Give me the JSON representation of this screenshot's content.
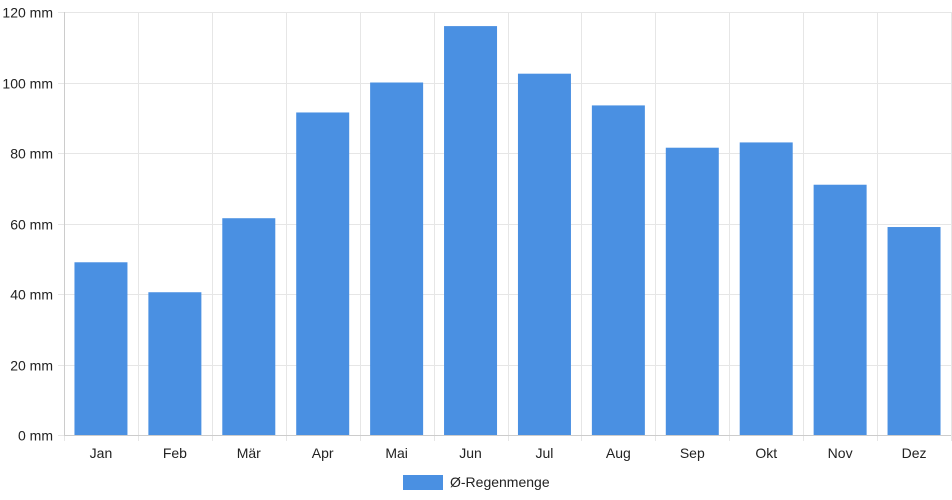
{
  "chart_data": {
    "type": "bar",
    "categories": [
      "Jan",
      "Feb",
      "Mär",
      "Apr",
      "Mai",
      "Jun",
      "Jul",
      "Aug",
      "Sep",
      "Okt",
      "Nov",
      "Dez"
    ],
    "series": [
      {
        "name": "Ø-Regenmenge",
        "color": "#4a90e2",
        "values": [
          49,
          40.5,
          61.5,
          91.5,
          100,
          116,
          102.5,
          93.5,
          81.5,
          83,
          71,
          59
        ]
      }
    ],
    "y_ticks": [
      "0 mm",
      "20 mm",
      "40 mm",
      "60 mm",
      "80 mm",
      "100 mm",
      "120 mm"
    ],
    "ylim": [
      0,
      120
    ],
    "y_tick_step": 20,
    "y_unit": "mm",
    "grid": true,
    "legend_position": "bottom-center",
    "grid_color": "#e6e6e6",
    "axis_color": "#cccccc"
  }
}
